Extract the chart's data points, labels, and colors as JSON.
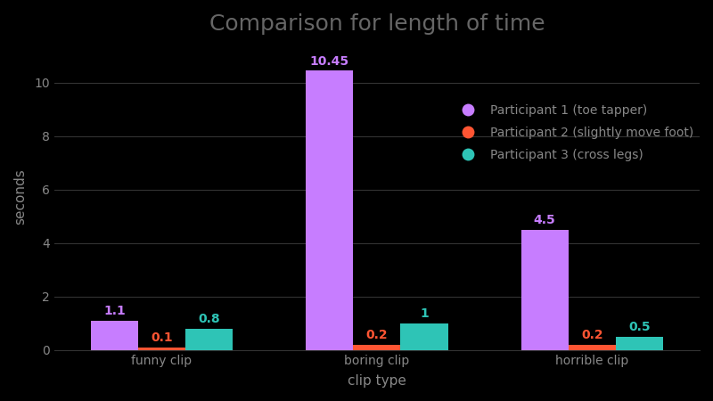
{
  "title": "Comparison for length of time",
  "xlabel": "clip type",
  "ylabel": "seconds",
  "categories": [
    "funny clip",
    "boring clip",
    "horrible clip"
  ],
  "series": [
    {
      "label": "Participant 1 (toe tapper)",
      "values": [
        1.1,
        10.45,
        4.5
      ],
      "color": "#c77dff"
    },
    {
      "label": "Participant 2 (slightly move foot)",
      "values": [
        0.1,
        0.2,
        0.2
      ],
      "color": "#ff5533"
    },
    {
      "label": "Participant 3 (cross legs)",
      "values": [
        0.8,
        1.0,
        0.5
      ],
      "color": "#2ec4b6"
    }
  ],
  "ylim": [
    0,
    11.5
  ],
  "yticks": [
    0,
    2,
    4,
    6,
    8,
    10
  ],
  "background_color": "#000000",
  "text_color": "#888888",
  "title_color": "#666666",
  "grid_color": "#333333",
  "bar_width": 0.22,
  "title_fontsize": 18,
  "label_fontsize": 11,
  "tick_fontsize": 10,
  "annotation_fontsize": 10,
  "legend_fontsize": 10
}
